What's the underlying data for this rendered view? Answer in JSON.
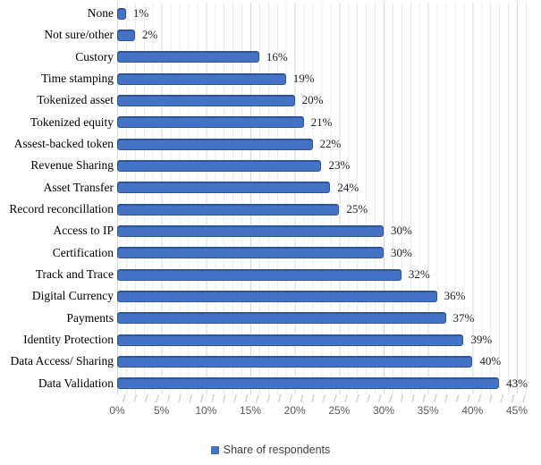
{
  "chart_data": {
    "type": "bar",
    "orientation": "horizontal",
    "title": "",
    "xlabel": "",
    "ylabel": "",
    "categories": [
      "None",
      "Not sure/other",
      "Custory",
      "Time stamping",
      "Tokenized asset",
      "Tokenized equity",
      "Assest-backed token",
      "Revenue Sharing",
      "Asset Transfer",
      "Record reconcillation",
      "Access to IP",
      "Certification",
      "Track and Trace",
      "Digital Currency",
      "Payments",
      "Identity Protection",
      "Data Access/ Sharing",
      "Data Validation"
    ],
    "values": [
      1,
      2,
      16,
      19,
      20,
      21,
      22,
      23,
      24,
      25,
      30,
      30,
      32,
      36,
      37,
      39,
      40,
      43
    ],
    "value_labels": [
      "1%",
      "2%",
      "16%",
      "19%",
      "20%",
      "21%",
      "22%",
      "23%",
      "24%",
      "25%",
      "30%",
      "30%",
      "32%",
      "36%",
      "37%",
      "39%",
      "40%",
      "43%"
    ],
    "x_ticks": [
      "0%",
      "5%",
      "10%",
      "15%",
      "20%",
      "25%",
      "30%",
      "35%",
      "40%",
      "45%"
    ],
    "xlim": [
      0,
      45
    ],
    "grid": "minor 1% and major 5% vertical gridlines",
    "legend_position": "bottom-center",
    "legend_label": "Share of respondents",
    "colors": {
      "bar_fill": "#4472C4",
      "bar_border": "#2F5597",
      "gridline_minor": "#ECECEC",
      "gridline_major": "#D8D8D8",
      "tick_label": "#595959",
      "value_label": "#1F1F1F",
      "legend_marker": "#4472C4"
    }
  }
}
